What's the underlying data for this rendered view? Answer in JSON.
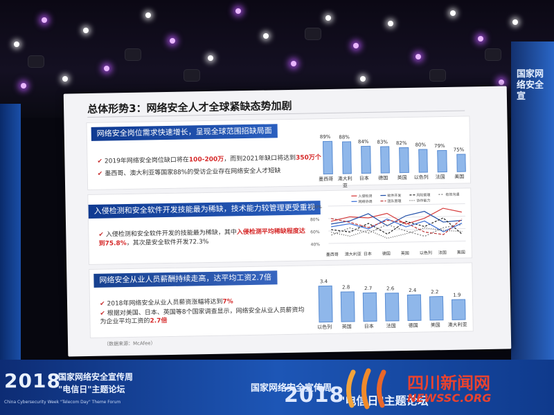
{
  "slide": {
    "title": "总体形势3：网络安全人才全球紧缺态势加剧",
    "source": "（数据来源：McAfee）",
    "section1": {
      "banner": "网络安全岗位需求快速增长，呈现全球范围招缺局面",
      "bullet1_pre": "2019年网络安全岗位缺口将在",
      "bullet1_hl1": "100-200万",
      "bullet1_mid": "，而到2021年缺口将达到",
      "bullet1_hl2": "350万个",
      "bullet2": "墨西哥、澳大利亚等国家88%的受访企业存在网络安全人才短缺",
      "chart_values": [
        "89%",
        "88%",
        "84%",
        "83%",
        "82%",
        "80%",
        "79%",
        "75%"
      ],
      "chart_labels": [
        "墨西哥",
        "澳大利亚",
        "日本",
        "德国",
        "英国",
        "以色列",
        "法国",
        "美国"
      ]
    },
    "section2": {
      "banner": "入侵检测和安全软件开发技能最为稀缺，技术能力较管理更受重视",
      "bullet1_pre": "入侵检测和安全软件开发的技能最为稀缺，其中",
      "bullet1_hl": "入侵检测平均稀缺程度达到75.8%",
      "bullet1_post": "，其次是安全软件开发72.3%",
      "legend": [
        "入侵检测",
        "软件开发",
        "风险管理",
        "有效沟通",
        "网络协调",
        "团队管理",
        "协作能力"
      ],
      "y_ticks": [
        "100%",
        "80%",
        "60%",
        "40%"
      ],
      "x_labels": [
        "墨西哥",
        "澳大利亚",
        "日本",
        "德国",
        "英国",
        "以色列",
        "法国",
        "美国"
      ]
    },
    "section3": {
      "banner": "网络安全从业人员薪酬持续走高，达平均工资2.7倍",
      "bullet1_pre": "2018年网络安全从业人员薪资涨幅将达到",
      "bullet1_hl": "7%",
      "bullet2_pre": "根据对美国、日本、英国等8个国家调查显示，网络安全从业人员薪资均为企业平均工资的",
      "bullet2_hl": "2.7倍",
      "chart_values": [
        "3.4",
        "2.8",
        "2.7",
        "2.6",
        "2.4",
        "2.2",
        "1.9"
      ],
      "chart_labels": [
        "以色列",
        "英国",
        "日本",
        "法国",
        "德国",
        "美国",
        "澳大利亚"
      ]
    }
  },
  "stage": {
    "left_year": "2018",
    "left_title": "国家网络安全宣传周",
    "left_subtitle": "\"电信日\"主题论坛",
    "left_english": "China Cybersecurity Week \"Telecom Day\" Theme Forum",
    "center_logo": "国家网络安全宣传周",
    "right_year": "2018",
    "right_subtitle": "\"电信日\"主题论坛",
    "side_right": "国家网络安全宣"
  },
  "watermark": {
    "cn": "四川新闻网",
    "en": "NEWSSC.ORG"
  },
  "colors": {
    "banner": "#1f4ea8",
    "highlight": "#d62b2b",
    "bar_fill": "#8fb7ea"
  }
}
